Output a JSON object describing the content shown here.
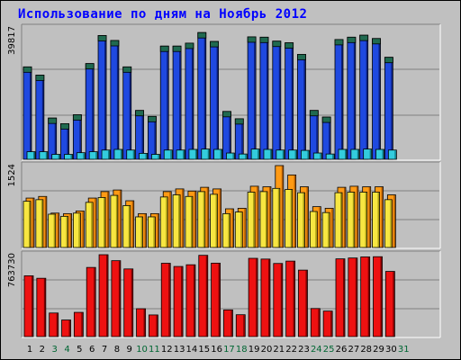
{
  "title": "Использование по дням на Ноябрь 2012",
  "colors": {
    "background": "#c0c0c0",
    "title": "#0000ff",
    "weekday_label": "#000000",
    "weekend_label": "#006633",
    "hits_top": "#206a50",
    "hits": "#1f49e0",
    "files": "#33ccdd",
    "pages": "#ff9a14",
    "visits": "#f7e641",
    "visits_peak": "#ffa500",
    "kbytes": "#ee1111"
  },
  "chart_data": [
    {
      "type": "bar",
      "ylabel": "39817",
      "ylim": [
        0,
        39817
      ],
      "categories": [
        "1",
        "2",
        "3",
        "4",
        "5",
        "6",
        "7",
        "8",
        "9",
        "10",
        "11",
        "12",
        "13",
        "14",
        "15",
        "16",
        "17",
        "18",
        "19",
        "20",
        "21",
        "22",
        "23",
        "24",
        "25",
        "26",
        "27",
        "28",
        "29",
        "30",
        "31"
      ],
      "weekend_days": [
        "3",
        "4",
        "10",
        "11",
        "17",
        "18",
        "24",
        "25",
        "31"
      ],
      "series": [
        {
          "values": [
            28000,
            25500,
            12500,
            10800,
            13500,
            29000,
            37500,
            36000,
            28000,
            14800,
            13000,
            34300,
            34300,
            35200,
            38400,
            35700,
            14500,
            12300,
            37100,
            37000,
            35800,
            35300,
            31800,
            14800,
            12800,
            36300,
            37000,
            37600,
            36600,
            30900,
            0
          ]
        },
        {
          "values": [
            2300,
            2300,
            1500,
            1500,
            2000,
            2300,
            2800,
            3000,
            2800,
            1800,
            1500,
            2800,
            2800,
            3000,
            3100,
            3000,
            1900,
            1600,
            3100,
            3000,
            2800,
            2800,
            2700,
            1900,
            1600,
            3000,
            3000,
            3100,
            3000,
            2800,
            0
          ]
        }
      ]
    },
    {
      "type": "bar",
      "ylabel": "1524",
      "ylim": [
        0,
        1524
      ],
      "categories": [
        "1",
        "2",
        "3",
        "4",
        "5",
        "6",
        "7",
        "8",
        "9",
        "10",
        "11",
        "12",
        "13",
        "14",
        "15",
        "16",
        "17",
        "18",
        "19",
        "20",
        "21",
        "22",
        "23",
        "24",
        "25",
        "26",
        "27",
        "28",
        "29",
        "30",
        "31"
      ],
      "series": [
        {
          "values": [
            920,
            950,
            640,
            630,
            680,
            920,
            1040,
            1070,
            870,
            630,
            630,
            1040,
            1090,
            1050,
            1120,
            1090,
            720,
            730,
            1140,
            1130,
            1524,
            1350,
            1130,
            760,
            730,
            1120,
            1140,
            1130,
            1130,
            980,
            0
          ]
        },
        {
          "values": [
            860,
            890,
            620,
            580,
            640,
            840,
            930,
            970,
            780,
            570,
            570,
            940,
            980,
            950,
            1040,
            990,
            630,
            660,
            1030,
            1040,
            1100,
            1080,
            1020,
            670,
            650,
            1020,
            1030,
            1030,
            1030,
            890,
            0
          ]
        }
      ]
    },
    {
      "type": "bar",
      "ylabel": "763730",
      "ylim": [
        0,
        763730
      ],
      "categories": [
        "1",
        "2",
        "3",
        "4",
        "5",
        "6",
        "7",
        "8",
        "9",
        "10",
        "11",
        "12",
        "13",
        "14",
        "15",
        "16",
        "17",
        "18",
        "19",
        "20",
        "21",
        "22",
        "23",
        "24",
        "25",
        "26",
        "27",
        "28",
        "29",
        "30",
        "31"
      ],
      "series": [
        {
          "values": [
            567000,
            544000,
            220000,
            155000,
            226000,
            645000,
            763730,
            708000,
            631000,
            260000,
            202000,
            684000,
            654000,
            670000,
            758000,
            685000,
            249000,
            204000,
            730000,
            723000,
            682000,
            704000,
            620000,
            262000,
            238000,
            725000,
            733000,
            743000,
            745000,
            608000,
            0
          ]
        }
      ]
    }
  ]
}
